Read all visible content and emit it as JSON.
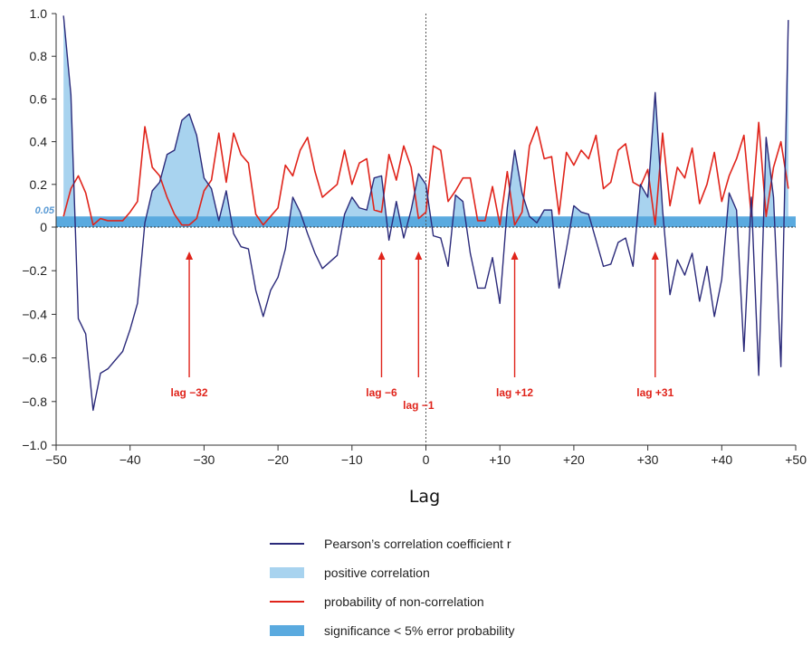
{
  "chart_data": {
    "type": "line",
    "xlabel": "Lag",
    "ylabel": "",
    "xlim": [
      -50,
      50
    ],
    "ylim": [
      -1.0,
      1.0
    ],
    "x_ticks": [
      -50,
      -40,
      -30,
      -20,
      -10,
      0,
      10,
      20,
      30,
      40,
      50
    ],
    "x_tick_labels": [
      "−50",
      "−40",
      "−30",
      "−20",
      "−10",
      "0",
      "+10",
      "+20",
      "+30",
      "+40",
      "+50"
    ],
    "y_ticks": [
      1.0,
      0.8,
      0.6,
      0.4,
      0.2,
      0,
      -0.2,
      -0.4,
      -0.6,
      -0.8,
      -1.0
    ],
    "y_tick_labels": [
      "1.0",
      "0.8",
      "0.6",
      "0.4",
      "0.2",
      "0",
      "−0.2",
      "−0.4",
      "−0.6",
      "−0.8",
      "−1.0"
    ],
    "significance_threshold": 0.05,
    "significance_label": "0.05",
    "grid": false,
    "series": [
      {
        "name": "Pearson’s correlation coefficient r",
        "color": "#2b2a7a",
        "x": [
          -49,
          -48,
          -47,
          -46,
          -45,
          -44,
          -43,
          -42,
          -41,
          -40,
          -39,
          -38,
          -37,
          -36,
          -35,
          -34,
          -33,
          -32,
          -31,
          -30,
          -29,
          -28,
          -27,
          -26,
          -25,
          -24,
          -23,
          -22,
          -21,
          -20,
          -19,
          -18,
          -17,
          -16,
          -15,
          -14,
          -13,
          -12,
          -11,
          -10,
          -9,
          -8,
          -7,
          -6,
          -5,
          -4,
          -3,
          -2,
          -1,
          0,
          1,
          2,
          3,
          4,
          5,
          6,
          7,
          8,
          9,
          10,
          11,
          12,
          13,
          14,
          15,
          16,
          17,
          18,
          19,
          20,
          21,
          22,
          23,
          24,
          25,
          26,
          27,
          28,
          29,
          30,
          31,
          32,
          33,
          34,
          35,
          36,
          37,
          38,
          39,
          40,
          41,
          42,
          43,
          44,
          45,
          46,
          47,
          48,
          49
        ],
        "y": [
          0.99,
          0.62,
          -0.42,
          -0.49,
          -0.84,
          -0.67,
          -0.65,
          -0.61,
          -0.57,
          -0.47,
          -0.35,
          0.02,
          0.17,
          0.21,
          0.34,
          0.36,
          0.5,
          0.53,
          0.43,
          0.23,
          0.18,
          0.03,
          0.17,
          -0.03,
          -0.09,
          -0.1,
          -0.29,
          -0.41,
          -0.29,
          -0.23,
          -0.1,
          0.14,
          0.07,
          -0.03,
          -0.12,
          -0.19,
          -0.16,
          -0.13,
          0.06,
          0.14,
          0.09,
          0.08,
          0.23,
          0.24,
          -0.06,
          0.12,
          -0.05,
          0.08,
          0.25,
          0.2,
          -0.04,
          -0.05,
          -0.18,
          0.15,
          0.12,
          -0.12,
          -0.28,
          -0.28,
          -0.14,
          -0.35,
          0.09,
          0.36,
          0.16,
          0.05,
          0.02,
          0.08,
          0.08,
          -0.28,
          -0.1,
          0.1,
          0.07,
          0.06,
          -0.06,
          -0.18,
          -0.17,
          -0.07,
          -0.05,
          -0.18,
          0.2,
          0.14,
          0.63,
          0.08,
          -0.31,
          -0.15,
          -0.22,
          -0.12,
          -0.34,
          -0.18,
          -0.41,
          -0.24,
          0.16,
          0.08,
          -0.57,
          0.14,
          -0.68,
          0.42,
          0.14,
          -0.64,
          0.97
        ]
      },
      {
        "name": "probability of non-correlation",
        "color": "#e0241b",
        "x": [
          -49,
          -48,
          -47,
          -46,
          -45,
          -44,
          -43,
          -42,
          -41,
          -40,
          -39,
          -38,
          -37,
          -36,
          -35,
          -34,
          -33,
          -32,
          -31,
          -30,
          -29,
          -28,
          -27,
          -26,
          -25,
          -24,
          -23,
          -22,
          -21,
          -20,
          -19,
          -18,
          -17,
          -16,
          -15,
          -14,
          -13,
          -12,
          -11,
          -10,
          -9,
          -8,
          -7,
          -6,
          -5,
          -4,
          -3,
          -2,
          -1,
          0,
          1,
          2,
          3,
          4,
          5,
          6,
          7,
          8,
          9,
          10,
          11,
          12,
          13,
          14,
          15,
          16,
          17,
          18,
          19,
          20,
          21,
          22,
          23,
          24,
          25,
          26,
          27,
          28,
          29,
          30,
          31,
          32,
          33,
          34,
          35,
          36,
          37,
          38,
          39,
          40,
          41,
          42,
          43,
          44,
          45,
          46,
          47,
          48,
          49
        ],
        "y": [
          0.05,
          0.18,
          0.24,
          0.16,
          0.01,
          0.04,
          0.03,
          0.03,
          0.03,
          0.07,
          0.12,
          0.47,
          0.28,
          0.24,
          0.14,
          0.06,
          0.01,
          0.01,
          0.04,
          0.17,
          0.22,
          0.44,
          0.21,
          0.44,
          0.34,
          0.3,
          0.06,
          0.01,
          0.05,
          0.09,
          0.29,
          0.24,
          0.36,
          0.42,
          0.26,
          0.14,
          0.17,
          0.2,
          0.36,
          0.2,
          0.3,
          0.32,
          0.08,
          0.07,
          0.34,
          0.22,
          0.38,
          0.28,
          0.04,
          0.07,
          0.38,
          0.36,
          0.12,
          0.17,
          0.23,
          0.23,
          0.03,
          0.03,
          0.19,
          0.01,
          0.26,
          0.01,
          0.07,
          0.38,
          0.47,
          0.32,
          0.33,
          0.06,
          0.35,
          0.29,
          0.36,
          0.32,
          0.43,
          0.18,
          0.21,
          0.36,
          0.39,
          0.21,
          0.19,
          0.27,
          0.01,
          0.44,
          0.1,
          0.28,
          0.23,
          0.37,
          0.11,
          0.2,
          0.35,
          0.12,
          0.24,
          0.32,
          0.43,
          0.05,
          0.49,
          0.05,
          0.28,
          0.4,
          0.18
        ]
      }
    ],
    "shading": [
      {
        "name": "positive correlation",
        "color": "#a8d3ef",
        "description_source": "legend"
      },
      {
        "name": "significance < 5% error probability",
        "color": "#5aaadf",
        "description_source": "legend"
      }
    ],
    "reference_line": {
      "x": 0,
      "style": "dotted"
    },
    "annotations": [
      {
        "label": "lag −32",
        "x": -32
      },
      {
        "label": "lag −6",
        "x": -6
      },
      {
        "label": "lag −1",
        "x": -1
      },
      {
        "label": "lag +12",
        "x": 12
      },
      {
        "label": "lag +31",
        "x": 31
      }
    ],
    "legend": {
      "placement": "bottom-center",
      "entries": [
        {
          "label": "Pearson’s correlation coefficient r",
          "kind": "line",
          "color": "#2b2a7a"
        },
        {
          "label": "positive correlation",
          "kind": "box",
          "color": "#a8d3ef"
        },
        {
          "label": "probability of non-correlation",
          "kind": "line",
          "color": "#e0241b"
        },
        {
          "label": "significance < 5% error probability",
          "kind": "box",
          "color": "#5aaadf"
        }
      ]
    }
  }
}
